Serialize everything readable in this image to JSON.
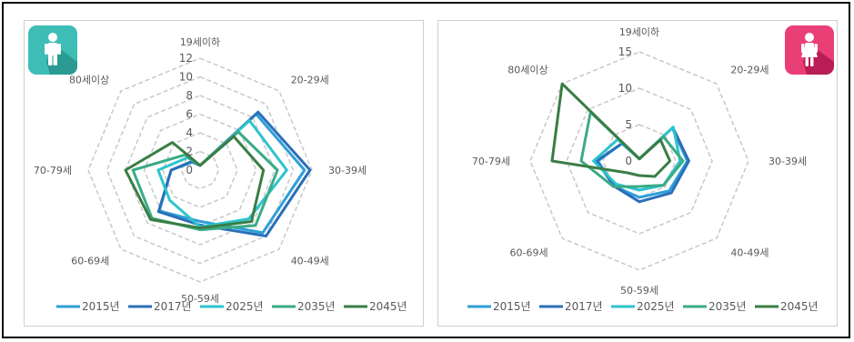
{
  "chart_data": [
    {
      "type": "radar",
      "gender": "male",
      "categories": [
        "19세이하",
        "20-29세",
        "30-39세",
        "40-49세",
        "50-59세",
        "60-69세",
        "70-79세",
        "80세이상"
      ],
      "rmax": 12,
      "ticks": [
        0,
        2,
        4,
        6,
        8,
        10,
        12
      ],
      "tick_labels": [
        "0",
        "2",
        "4",
        "6",
        "8",
        "10",
        "12"
      ],
      "grid": true,
      "legend_position": "bottom",
      "series": [
        {
          "name": "2015년",
          "color": "#2e9fd8",
          "values": [
            0.5,
            8.5,
            11.2,
            9.5,
            5.5,
            6.2,
            3.1,
            1.2
          ]
        },
        {
          "name": "2017년",
          "color": "#2a6fb8",
          "values": [
            0.5,
            8.8,
            11.8,
            10.0,
            5.9,
            6.3,
            3.1,
            1.3
          ]
        },
        {
          "name": "2025년",
          "color": "#2cc4cc",
          "values": [
            0.5,
            7.5,
            9.3,
            7.4,
            6.1,
            4.6,
            4.5,
            1.9
          ]
        },
        {
          "name": "2035년",
          "color": "#3aab86",
          "values": [
            0.5,
            5.8,
            8.3,
            8.4,
            6.4,
            7.3,
            7.2,
            2.3
          ]
        },
        {
          "name": "2045년",
          "color": "#3a7d44",
          "values": [
            0.5,
            5.1,
            6.8,
            7.8,
            6.2,
            7.5,
            8.0,
            4.2
          ]
        }
      ]
    },
    {
      "type": "radar",
      "gender": "female",
      "categories": [
        "19세이하",
        "20-29세",
        "30-39세",
        "40-49세",
        "50-59세",
        "60-69세",
        "70-79세",
        "80세이상"
      ],
      "rmax": 15,
      "ticks": [
        0,
        5,
        10,
        15
      ],
      "tick_labels": [
        "0",
        "5",
        "10",
        "15"
      ],
      "grid": true,
      "legend_position": "bottom",
      "series": [
        {
          "name": "2015년",
          "color": "#2e9fd8",
          "values": [
            0.3,
            6.4,
            6.6,
            5.8,
            5.0,
            4.9,
            5.7,
            3.4
          ]
        },
        {
          "name": "2017년",
          "color": "#2a6fb8",
          "values": [
            0.3,
            6.5,
            6.8,
            6.2,
            5.6,
            4.9,
            5.9,
            3.4
          ]
        },
        {
          "name": "2025년",
          "color": "#2cc4cc",
          "values": [
            0.3,
            6.6,
            5.6,
            4.7,
            4.0,
            4.5,
            6.3,
            4.2
          ]
        },
        {
          "name": "2035년",
          "color": "#3aab86",
          "values": [
            0.3,
            4.7,
            6.0,
            4.7,
            3.5,
            5.0,
            8.0,
            9.5
          ]
        },
        {
          "name": "2045년",
          "color": "#3a7d44",
          "values": [
            0.3,
            4.1,
            4.2,
            3.0,
            2.0,
            2.3,
            12.0,
            15.0
          ]
        }
      ]
    }
  ],
  "icons": {
    "male": "male-person-icon",
    "female": "female-person-icon",
    "male_color": "#3dbdb6",
    "female_color": "#ea3e77"
  }
}
